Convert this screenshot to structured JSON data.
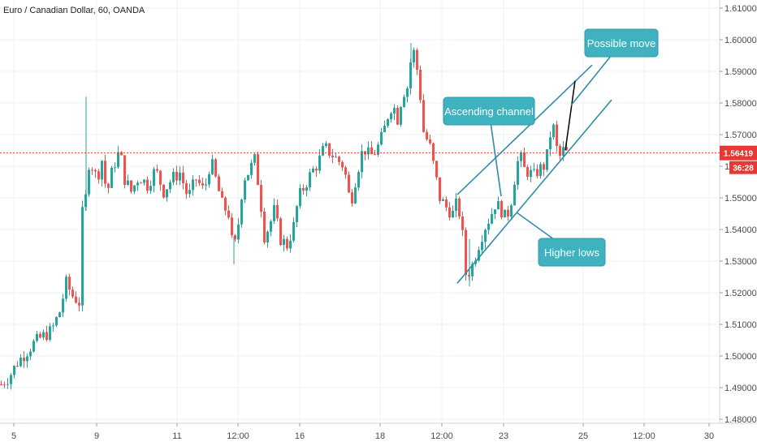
{
  "chart_data": {
    "type": "candlestick",
    "title": "Euro / Canadian Dollar, 60, OANDA",
    "ylim": [
      1.4785,
      1.615
    ],
    "y_ticks": [
      "1.48000",
      "1.49000",
      "1.50000",
      "1.51000",
      "1.52000",
      "1.53000",
      "1.54000",
      "1.55000",
      "1.56000",
      "1.57000",
      "1.58000",
      "1.59000",
      "1.60000",
      "1.61000"
    ],
    "x_ticks": [
      "5",
      "9",
      "11",
      "12:00",
      "16",
      "18",
      "12:00",
      "23",
      "25",
      "12:00",
      "30"
    ],
    "grid": true,
    "current_price": "1.56419",
    "countdown": "36:28",
    "colors": {
      "up": "#26a69a",
      "down": "#ef5350",
      "annotation": "#3fb1bf",
      "annotation_line": "#2c8fa8",
      "projection": "#000000",
      "price_line": "#e53935"
    },
    "series": [
      {
        "name": "EUR/CAD",
        "close_path": [
          [
            0,
            1.491
          ],
          [
            10,
            1.4935
          ],
          [
            20,
            1.498
          ],
          [
            30,
            1.501
          ],
          [
            40,
            1.504
          ],
          [
            50,
            1.506
          ],
          [
            62,
            1.508
          ],
          [
            72,
            1.514
          ],
          [
            80,
            1.523
          ],
          [
            88,
            1.519
          ],
          [
            96,
            1.517
          ],
          [
            100,
            1.545
          ],
          [
            104,
            1.55
          ],
          [
            108,
            1.561
          ],
          [
            112,
            1.56
          ],
          [
            118,
            1.556
          ],
          [
            124,
            1.562
          ],
          [
            130,
            1.551
          ],
          [
            138,
            1.56
          ],
          [
            146,
            1.565
          ],
          [
            152,
            1.556
          ],
          [
            160,
            1.552
          ],
          [
            170,
            1.557
          ],
          [
            180,
            1.554
          ],
          [
            190,
            1.559
          ],
          [
            200,
            1.552
          ],
          [
            210,
            1.556
          ],
          [
            220,
            1.558
          ],
          [
            230,
            1.55
          ],
          [
            240,
            1.556
          ],
          [
            250,
            1.552
          ],
          [
            258,
            1.562
          ],
          [
            266,
            1.554
          ],
          [
            272,
            1.548
          ],
          [
            280,
            1.545
          ],
          [
            286,
            1.532
          ],
          [
            292,
            1.542
          ],
          [
            298,
            1.556
          ],
          [
            304,
            1.558
          ],
          [
            312,
            1.562
          ],
          [
            318,
            1.552
          ],
          [
            324,
            1.538
          ],
          [
            330,
            1.541
          ],
          [
            336,
            1.546
          ],
          [
            344,
            1.537
          ],
          [
            352,
            1.535
          ],
          [
            360,
            1.541
          ],
          [
            366,
            1.55
          ],
          [
            374,
            1.554
          ],
          [
            382,
            1.558
          ],
          [
            390,
            1.561
          ],
          [
            398,
            1.566
          ],
          [
            406,
            1.564
          ],
          [
            414,
            1.562
          ],
          [
            422,
            1.56
          ],
          [
            430,
            1.548
          ],
          [
            438,
            1.558
          ],
          [
            446,
            1.566
          ],
          [
            454,
            1.563
          ],
          [
            462,
            1.565
          ],
          [
            470,
            1.57
          ],
          [
            476,
            1.576
          ],
          [
            482,
            1.58
          ],
          [
            488,
            1.575
          ],
          [
            494,
            1.583
          ],
          [
            500,
            1.585
          ],
          [
            506,
            1.597
          ],
          [
            510,
            1.595
          ],
          [
            516,
            1.582
          ],
          [
            520,
            1.571
          ],
          [
            528,
            1.566
          ],
          [
            534,
            1.558
          ],
          [
            540,
            1.55
          ],
          [
            548,
            1.547
          ],
          [
            556,
            1.545
          ],
          [
            562,
            1.549
          ],
          [
            568,
            1.538
          ],
          [
            572,
            1.526
          ],
          [
            578,
            1.527
          ],
          [
            584,
            1.532
          ],
          [
            590,
            1.537
          ],
          [
            596,
            1.541
          ],
          [
            602,
            1.544
          ],
          [
            608,
            1.548
          ],
          [
            614,
            1.547
          ],
          [
            620,
            1.544
          ],
          [
            626,
            1.546
          ],
          [
            632,
            1.556
          ],
          [
            638,
            1.564
          ],
          [
            644,
            1.559
          ],
          [
            650,
            1.558
          ],
          [
            656,
            1.557
          ],
          [
            662,
            1.559
          ],
          [
            668,
            1.56
          ],
          [
            674,
            1.565
          ],
          [
            678,
            1.575
          ],
          [
            682,
            1.569
          ],
          [
            686,
            1.562
          ],
          [
            692,
            1.565
          ],
          [
            696,
            1.5642
          ]
        ]
      }
    ],
    "annotations": [
      {
        "text": "Possible move",
        "box": [
          720,
          36
        ],
        "point": [
          703,
          130
        ]
      },
      {
        "text": "Ascending channel",
        "box": [
          546,
          120
        ],
        "point": [
          617,
          242
        ]
      },
      {
        "text": "Higher lows",
        "box": [
          663,
          294
        ],
        "point": [
          636,
          262
        ]
      }
    ],
    "channel_lines": [
      {
        "from": [
          563,
          1.551
        ],
        "to": [
          729,
          1.592
        ]
      },
      {
        "from": [
          563,
          1.523
        ],
        "to": [
          753,
          1.581
        ]
      }
    ],
    "projection": {
      "from": [
        696,
        1.565
      ],
      "to": [
        708,
        1.587
      ]
    }
  }
}
